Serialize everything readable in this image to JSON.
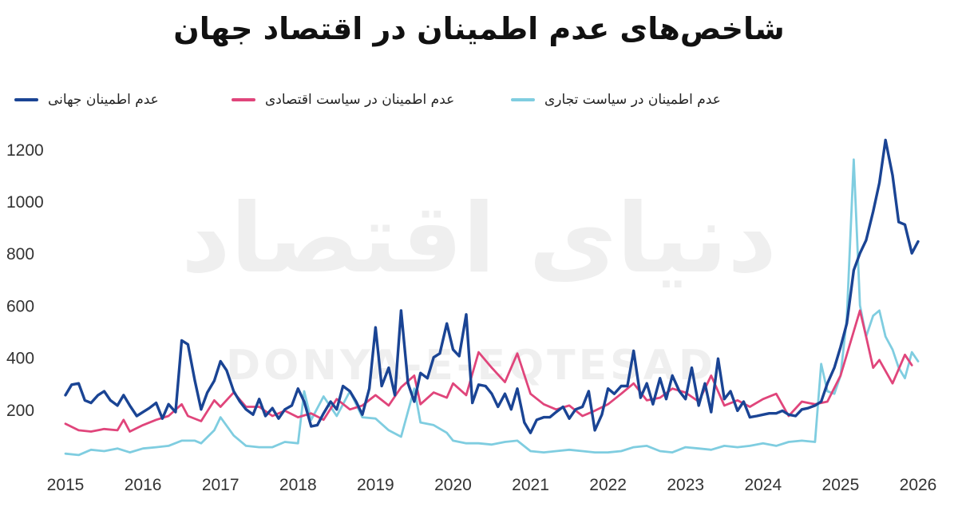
{
  "title": "شاخص‌های عدم اطمینان در اقتصاد جهان",
  "watermark": {
    "fa": "دنیای اقتصاد",
    "en": "DONYA-E-EQTESAD"
  },
  "chart_data": {
    "type": "line",
    "title": "شاخص‌های عدم اطمینان در اقتصاد جهان",
    "xlabel": "",
    "ylabel": "",
    "xlim": [
      2015,
      2026
    ],
    "ylim": [
      0,
      1300
    ],
    "x_ticks": [
      "2015",
      "2016",
      "2017",
      "2018",
      "2019",
      "2020",
      "2021",
      "2022",
      "2023",
      "2024",
      "2025",
      "2026"
    ],
    "y_ticks": [
      "200",
      "400",
      "600",
      "800",
      "1000",
      "1200"
    ],
    "legend_position": "top",
    "grid": false,
    "series": [
      {
        "name": "عدم اطمینان جهانی",
        "color": "#1a4494",
        "points": [
          [
            2015.0,
            255
          ],
          [
            2015.08,
            295
          ],
          [
            2015.17,
            300
          ],
          [
            2015.25,
            235
          ],
          [
            2015.33,
            225
          ],
          [
            2015.42,
            255
          ],
          [
            2015.5,
            270
          ],
          [
            2015.58,
            235
          ],
          [
            2015.67,
            215
          ],
          [
            2015.75,
            255
          ],
          [
            2015.83,
            215
          ],
          [
            2015.92,
            175
          ],
          [
            2016.0,
            190
          ],
          [
            2016.08,
            205
          ],
          [
            2016.17,
            225
          ],
          [
            2016.25,
            165
          ],
          [
            2016.33,
            220
          ],
          [
            2016.42,
            190
          ],
          [
            2016.5,
            465
          ],
          [
            2016.58,
            450
          ],
          [
            2016.67,
            310
          ],
          [
            2016.75,
            200
          ],
          [
            2016.83,
            265
          ],
          [
            2016.92,
            310
          ],
          [
            2017.0,
            385
          ],
          [
            2017.08,
            350
          ],
          [
            2017.17,
            270
          ],
          [
            2017.25,
            230
          ],
          [
            2017.33,
            200
          ],
          [
            2017.42,
            180
          ],
          [
            2017.5,
            240
          ],
          [
            2017.58,
            175
          ],
          [
            2017.67,
            205
          ],
          [
            2017.75,
            165
          ],
          [
            2017.83,
            200
          ],
          [
            2017.92,
            215
          ],
          [
            2018.0,
            280
          ],
          [
            2018.08,
            230
          ],
          [
            2018.17,
            135
          ],
          [
            2018.25,
            140
          ],
          [
            2018.33,
            185
          ],
          [
            2018.42,
            230
          ],
          [
            2018.5,
            200
          ],
          [
            2018.58,
            290
          ],
          [
            2018.67,
            270
          ],
          [
            2018.75,
            230
          ],
          [
            2018.83,
            180
          ],
          [
            2018.92,
            280
          ],
          [
            2019.0,
            515
          ],
          [
            2019.08,
            290
          ],
          [
            2019.17,
            360
          ],
          [
            2019.25,
            255
          ],
          [
            2019.33,
            580
          ],
          [
            2019.42,
            300
          ],
          [
            2019.5,
            230
          ],
          [
            2019.58,
            340
          ],
          [
            2019.67,
            320
          ],
          [
            2019.75,
            400
          ],
          [
            2019.83,
            415
          ],
          [
            2019.92,
            530
          ],
          [
            2020.0,
            430
          ],
          [
            2020.08,
            405
          ],
          [
            2020.17,
            565
          ],
          [
            2020.25,
            225
          ],
          [
            2020.33,
            295
          ],
          [
            2020.42,
            290
          ],
          [
            2020.5,
            260
          ],
          [
            2020.58,
            210
          ],
          [
            2020.67,
            260
          ],
          [
            2020.75,
            200
          ],
          [
            2020.83,
            280
          ],
          [
            2020.92,
            150
          ],
          [
            2021.0,
            110
          ],
          [
            2021.08,
            160
          ],
          [
            2021.17,
            170
          ],
          [
            2021.25,
            170
          ],
          [
            2021.33,
            190
          ],
          [
            2021.42,
            210
          ],
          [
            2021.5,
            165
          ],
          [
            2021.58,
            200
          ],
          [
            2021.67,
            210
          ],
          [
            2021.75,
            270
          ],
          [
            2021.83,
            120
          ],
          [
            2021.92,
            180
          ],
          [
            2022.0,
            280
          ],
          [
            2022.08,
            260
          ],
          [
            2022.17,
            290
          ],
          [
            2022.25,
            290
          ],
          [
            2022.33,
            425
          ],
          [
            2022.42,
            245
          ],
          [
            2022.5,
            300
          ],
          [
            2022.58,
            220
          ],
          [
            2022.67,
            320
          ],
          [
            2022.75,
            240
          ],
          [
            2022.83,
            330
          ],
          [
            2022.92,
            270
          ],
          [
            2023.0,
            240
          ],
          [
            2023.08,
            360
          ],
          [
            2023.17,
            215
          ],
          [
            2023.25,
            300
          ],
          [
            2023.33,
            190
          ],
          [
            2023.42,
            395
          ],
          [
            2023.5,
            240
          ],
          [
            2023.58,
            270
          ],
          [
            2023.67,
            195
          ],
          [
            2023.75,
            230
          ],
          [
            2023.83,
            170
          ],
          [
            2023.92,
            175
          ],
          [
            2024.0,
            180
          ],
          [
            2024.08,
            185
          ],
          [
            2024.17,
            185
          ],
          [
            2024.25,
            195
          ],
          [
            2024.33,
            180
          ],
          [
            2024.42,
            175
          ],
          [
            2024.5,
            200
          ],
          [
            2024.58,
            205
          ],
          [
            2024.67,
            215
          ],
          [
            2024.75,
            230
          ],
          [
            2024.83,
            300
          ],
          [
            2024.92,
            360
          ],
          [
            2025.0,
            440
          ],
          [
            2025.08,
            530
          ],
          [
            2025.17,
            735
          ],
          [
            2025.25,
            800
          ],
          [
            2025.33,
            850
          ],
          [
            2025.42,
            960
          ],
          [
            2025.5,
            1070
          ],
          [
            2025.58,
            1235
          ],
          [
            2025.67,
            1100
          ],
          [
            2025.75,
            920
          ],
          [
            2025.83,
            910
          ],
          [
            2025.92,
            800
          ],
          [
            2026.0,
            845
          ]
        ]
      },
      {
        "name": "عدم اطمینان در سیاست اقتصادی",
        "color": "#e0457b",
        "points": [
          [
            2015.0,
            145
          ],
          [
            2015.17,
            120
          ],
          [
            2015.33,
            115
          ],
          [
            2015.5,
            125
          ],
          [
            2015.67,
            120
          ],
          [
            2015.75,
            160
          ],
          [
            2015.83,
            115
          ],
          [
            2016.0,
            140
          ],
          [
            2016.17,
            160
          ],
          [
            2016.33,
            175
          ],
          [
            2016.5,
            220
          ],
          [
            2016.58,
            175
          ],
          [
            2016.75,
            155
          ],
          [
            2016.92,
            235
          ],
          [
            2017.0,
            210
          ],
          [
            2017.17,
            265
          ],
          [
            2017.33,
            210
          ],
          [
            2017.5,
            210
          ],
          [
            2017.67,
            175
          ],
          [
            2017.83,
            195
          ],
          [
            2018.0,
            170
          ],
          [
            2018.17,
            185
          ],
          [
            2018.33,
            160
          ],
          [
            2018.5,
            240
          ],
          [
            2018.67,
            200
          ],
          [
            2018.83,
            215
          ],
          [
            2019.0,
            255
          ],
          [
            2019.17,
            215
          ],
          [
            2019.33,
            285
          ],
          [
            2019.5,
            330
          ],
          [
            2019.58,
            220
          ],
          [
            2019.75,
            265
          ],
          [
            2019.92,
            245
          ],
          [
            2020.0,
            300
          ],
          [
            2020.17,
            255
          ],
          [
            2020.33,
            420
          ],
          [
            2020.5,
            360
          ],
          [
            2020.67,
            305
          ],
          [
            2020.83,
            415
          ],
          [
            2021.0,
            260
          ],
          [
            2021.17,
            220
          ],
          [
            2021.33,
            200
          ],
          [
            2021.5,
            215
          ],
          [
            2021.67,
            175
          ],
          [
            2021.83,
            195
          ],
          [
            2022.0,
            220
          ],
          [
            2022.17,
            260
          ],
          [
            2022.33,
            300
          ],
          [
            2022.5,
            235
          ],
          [
            2022.67,
            245
          ],
          [
            2022.83,
            280
          ],
          [
            2023.0,
            265
          ],
          [
            2023.17,
            230
          ],
          [
            2023.33,
            330
          ],
          [
            2023.5,
            215
          ],
          [
            2023.67,
            235
          ],
          [
            2023.83,
            210
          ],
          [
            2024.0,
            240
          ],
          [
            2024.17,
            260
          ],
          [
            2024.33,
            175
          ],
          [
            2024.5,
            230
          ],
          [
            2024.67,
            220
          ],
          [
            2024.83,
            230
          ],
          [
            2025.0,
            330
          ],
          [
            2025.17,
            500
          ],
          [
            2025.25,
            580
          ],
          [
            2025.33,
            480
          ],
          [
            2025.42,
            360
          ],
          [
            2025.5,
            390
          ],
          [
            2025.67,
            300
          ],
          [
            2025.83,
            410
          ],
          [
            2025.92,
            370
          ]
        ]
      },
      {
        "name": "عدم اطمینان در سیاست تجاری",
        "color": "#7fcde0",
        "points": [
          [
            2015.0,
            30
          ],
          [
            2015.17,
            25
          ],
          [
            2015.33,
            45
          ],
          [
            2015.5,
            40
          ],
          [
            2015.67,
            50
          ],
          [
            2015.83,
            35
          ],
          [
            2016.0,
            50
          ],
          [
            2016.17,
            55
          ],
          [
            2016.33,
            60
          ],
          [
            2016.5,
            80
          ],
          [
            2016.67,
            80
          ],
          [
            2016.75,
            70
          ],
          [
            2016.92,
            120
          ],
          [
            2017.0,
            170
          ],
          [
            2017.17,
            100
          ],
          [
            2017.33,
            60
          ],
          [
            2017.5,
            55
          ],
          [
            2017.67,
            55
          ],
          [
            2017.83,
            75
          ],
          [
            2018.0,
            70
          ],
          [
            2018.08,
            270
          ],
          [
            2018.17,
            160
          ],
          [
            2018.33,
            250
          ],
          [
            2018.5,
            175
          ],
          [
            2018.67,
            270
          ],
          [
            2018.83,
            170
          ],
          [
            2019.0,
            165
          ],
          [
            2019.17,
            120
          ],
          [
            2019.33,
            95
          ],
          [
            2019.5,
            280
          ],
          [
            2019.58,
            150
          ],
          [
            2019.75,
            140
          ],
          [
            2019.92,
            110
          ],
          [
            2020.0,
            80
          ],
          [
            2020.17,
            70
          ],
          [
            2020.33,
            70
          ],
          [
            2020.5,
            65
          ],
          [
            2020.67,
            75
          ],
          [
            2020.83,
            80
          ],
          [
            2021.0,
            40
          ],
          [
            2021.17,
            35
          ],
          [
            2021.33,
            40
          ],
          [
            2021.5,
            45
          ],
          [
            2021.67,
            40
          ],
          [
            2021.83,
            35
          ],
          [
            2022.0,
            35
          ],
          [
            2022.17,
            40
          ],
          [
            2022.33,
            55
          ],
          [
            2022.5,
            60
          ],
          [
            2022.67,
            40
          ],
          [
            2022.83,
            35
          ],
          [
            2023.0,
            55
          ],
          [
            2023.17,
            50
          ],
          [
            2023.33,
            45
          ],
          [
            2023.5,
            60
          ],
          [
            2023.67,
            55
          ],
          [
            2023.83,
            60
          ],
          [
            2024.0,
            70
          ],
          [
            2024.17,
            60
          ],
          [
            2024.33,
            75
          ],
          [
            2024.5,
            80
          ],
          [
            2024.67,
            75
          ],
          [
            2024.75,
            375
          ],
          [
            2024.83,
            270
          ],
          [
            2024.92,
            260
          ],
          [
            2025.0,
            330
          ],
          [
            2025.08,
            550
          ],
          [
            2025.17,
            1160
          ],
          [
            2025.25,
            600
          ],
          [
            2025.33,
            480
          ],
          [
            2025.42,
            560
          ],
          [
            2025.5,
            580
          ],
          [
            2025.58,
            480
          ],
          [
            2025.67,
            430
          ],
          [
            2025.75,
            360
          ],
          [
            2025.83,
            320
          ],
          [
            2025.92,
            420
          ],
          [
            2026.0,
            385
          ]
        ]
      }
    ]
  }
}
